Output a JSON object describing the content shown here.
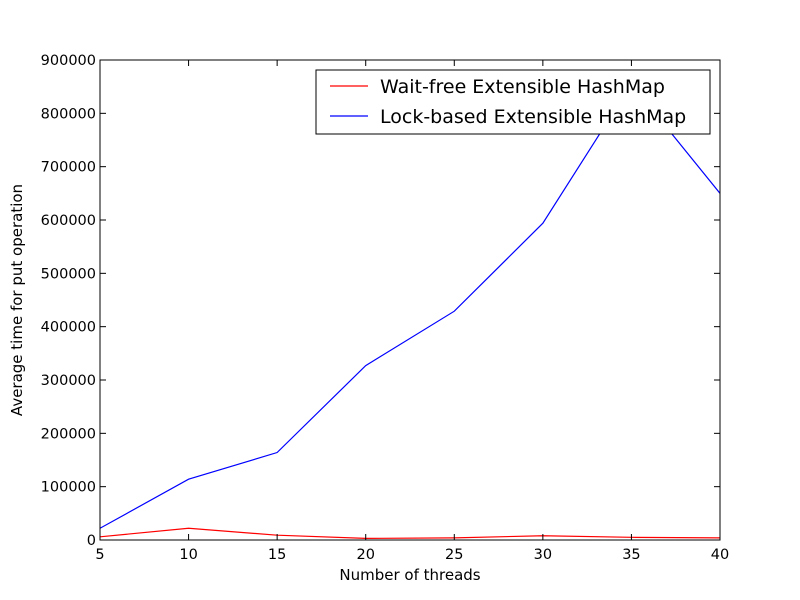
{
  "chart_data": {
    "type": "line",
    "title": "",
    "xlabel": "Number of threads",
    "ylabel": "Average time for put operation",
    "x": [
      5,
      10,
      15,
      20,
      25,
      30,
      35,
      40
    ],
    "xlim": [
      5,
      40
    ],
    "ylim": [
      0,
      900000
    ],
    "xticks": [
      "5",
      "10",
      "15",
      "20",
      "25",
      "30",
      "35",
      "40"
    ],
    "yticks": [
      "0",
      "100000",
      "200000",
      "300000",
      "400000",
      "500000",
      "600000",
      "700000",
      "800000",
      "900000"
    ],
    "grid": false,
    "legend_position": "top-right",
    "series": [
      {
        "name": "Wait-free Extensible HashMap",
        "color": "#ff0000",
        "values": [
          6000,
          22000,
          9000,
          3000,
          4000,
          8000,
          5000,
          4000
        ]
      },
      {
        "name": "Lock-based Extensible HashMap",
        "color": "#0000ff",
        "values": [
          22000,
          114000,
          164000,
          327000,
          429000,
          594000,
          855000,
          650000
        ]
      }
    ]
  }
}
